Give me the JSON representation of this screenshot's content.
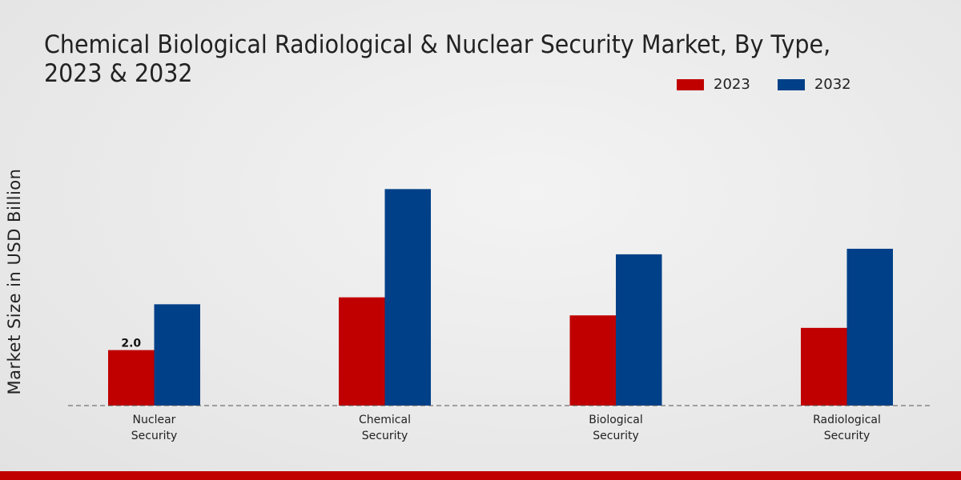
{
  "chart_data": {
    "type": "bar",
    "title": "Chemical Biological Radiological & Nuclear Security Market, By Type, 2023 & 2032",
    "xlabel": "",
    "ylabel": "Market Size in USD Billion",
    "categories": [
      "Nuclear Security",
      "Chemical Security",
      "Biological Security",
      "Radiological Security"
    ],
    "series": [
      {
        "name": "2023",
        "color": "#c00000",
        "values": [
          2.0,
          3.9,
          3.25,
          2.8
        ]
      },
      {
        "name": "2032",
        "color": "#004088",
        "values": [
          3.65,
          7.8,
          5.45,
          5.65
        ]
      }
    ],
    "data_labels": [
      {
        "series": 0,
        "index": 0,
        "text": "2.0"
      }
    ],
    "ylim": [
      0,
      10
    ],
    "grid": false,
    "legend_position": "top-right"
  },
  "colors": {
    "accent": "#c00000",
    "secondary": "#004088",
    "background": "#ebebeb"
  }
}
